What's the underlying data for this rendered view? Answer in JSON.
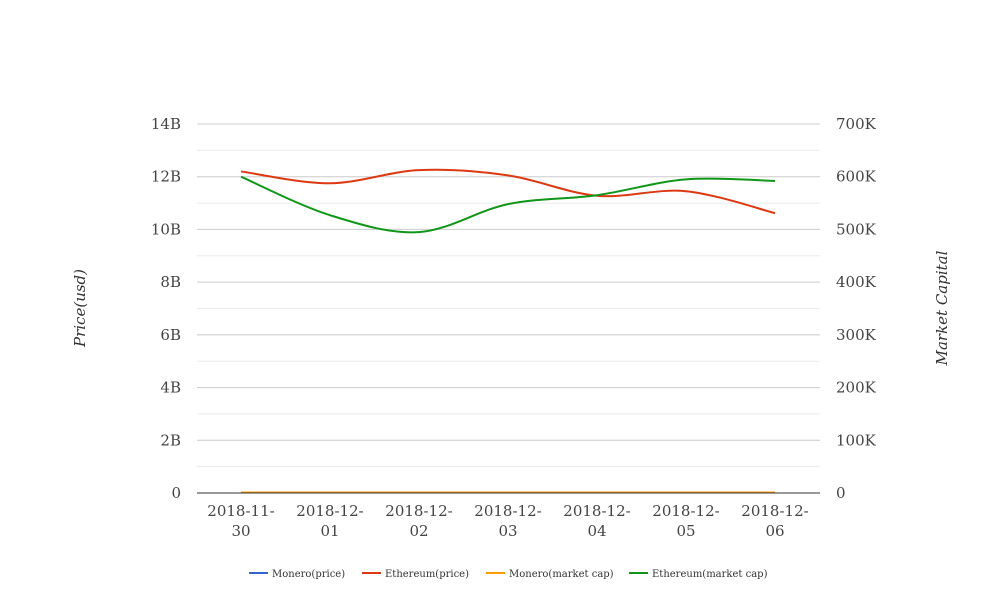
{
  "chart_data": {
    "type": "line",
    "categories": [
      [
        "2018-11-",
        "30"
      ],
      [
        "2018-12-",
        "01"
      ],
      [
        "2018-12-",
        "02"
      ],
      [
        "2018-12-",
        "03"
      ],
      [
        "2018-12-",
        "04"
      ],
      [
        "2018-12-",
        "05"
      ],
      [
        "2018-12-",
        "06"
      ]
    ],
    "y_left": {
      "label": "Price(usd)",
      "ticks": [
        "0",
        "2B",
        "4B",
        "6B",
        "8B",
        "10B",
        "12B",
        "14B"
      ],
      "range": [
        0,
        14000000000
      ]
    },
    "y_right": {
      "label": "Market Capital",
      "ticks": [
        "0",
        "100K",
        "200K",
        "300K",
        "400K",
        "500K",
        "600K",
        "700K"
      ],
      "range": [
        0,
        700000
      ]
    },
    "grid": true,
    "legend_position": "bottom",
    "series": [
      {
        "name": "Monero(price)",
        "color": "#3366cc",
        "axis": "left",
        "values": [
          0,
          0,
          0,
          0,
          0,
          0,
          0
        ]
      },
      {
        "name": "Ethereum(price)",
        "color": "#dc3912",
        "axis": "left",
        "values": [
          12200000000,
          11750000000,
          12250000000,
          12050000000,
          11280000000,
          11450000000,
          10620000000
        ]
      },
      {
        "name": "Monero(market cap)",
        "color": "#ff9900",
        "axis": "right",
        "values": [
          0,
          0,
          0,
          0,
          0,
          0,
          0
        ]
      },
      {
        "name": "Ethereum(market cap)",
        "color": "#109618",
        "axis": "right",
        "values": [
          600000,
          527000,
          495000,
          548000,
          565000,
          595000,
          592000
        ]
      }
    ]
  }
}
